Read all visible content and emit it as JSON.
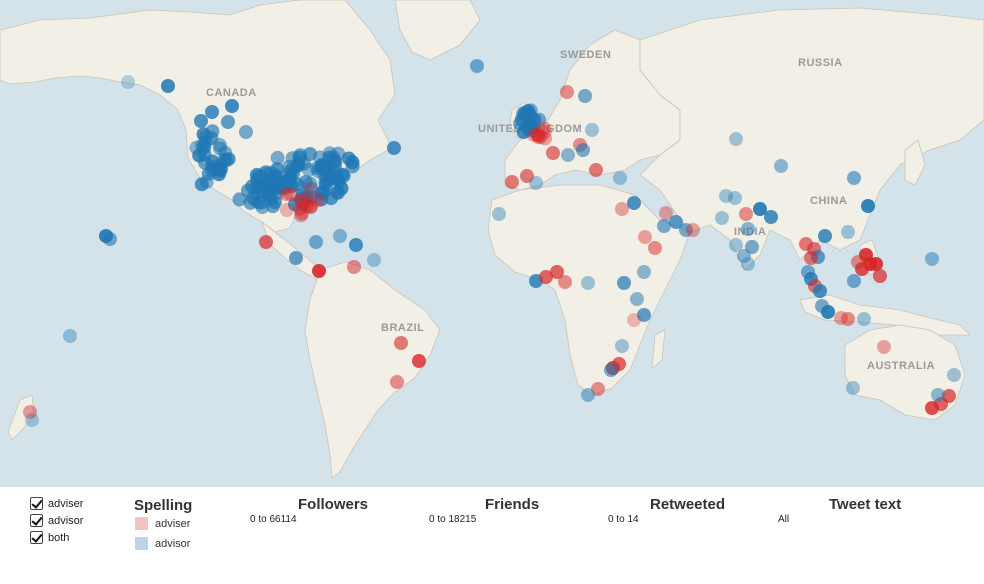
{
  "labels": {
    "canada": "CANADA",
    "sweden": "SWEDEN",
    "russia": "RUSSIA",
    "united_kingdom": "UNITED KINGDOM",
    "china": "CHINA",
    "india": "INDIA",
    "brazil": "BRAZIL",
    "australia": "AUSTRALIA"
  },
  "colors": {
    "ocean": "#d4e3ea",
    "land": "#f2efe6",
    "adviser": "#d62728",
    "advisor": "#1f77b4",
    "adviser_swatch": "#f4c2c3",
    "advisor_swatch": "#bcd4e8"
  },
  "filters": {
    "items": [
      {
        "label": "adviser",
        "checked": true
      },
      {
        "label": "advisor",
        "checked": true
      },
      {
        "label": "both",
        "checked": true
      }
    ]
  },
  "legend": {
    "title": "Spelling",
    "entries": [
      {
        "label": "adviser"
      },
      {
        "label": "advisor"
      }
    ]
  },
  "ranges": {
    "followers": {
      "title": "Followers",
      "value": "0 to 66114"
    },
    "friends": {
      "title": "Friends",
      "value": "0 to 18215"
    },
    "retweeted": {
      "title": "Retweeted",
      "value": "0 to 14"
    },
    "tweet_text": {
      "title": "Tweet text",
      "value": "All"
    }
  }
}
